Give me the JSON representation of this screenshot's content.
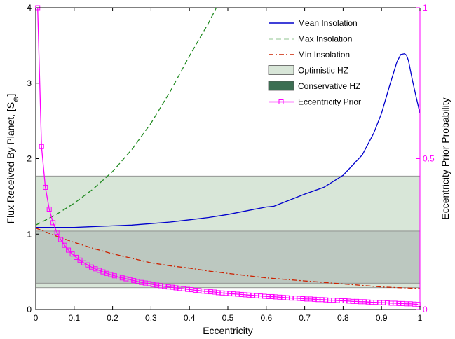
{
  "chart_data": {
    "type": "line",
    "xlabel": "Eccentricity",
    "ylabel": "Flux Received By Planet, [S",
    "ylabel_sub": "⊕",
    "ylabel_close": "]",
    "y2label": "Eccentricity Prior Probability",
    "xlim": [
      0,
      1
    ],
    "ylim": [
      0,
      4
    ],
    "y2lim": [
      0,
      1
    ],
    "x_ticks": [
      "0",
      "0.1",
      "0.2",
      "0.3",
      "0.4",
      "0.5",
      "0.6",
      "0.7",
      "0.8",
      "0.9",
      "1"
    ],
    "y_ticks": [
      "0",
      "1",
      "2",
      "3",
      "4"
    ],
    "y2_ticks": [
      "0",
      "0.5",
      "1"
    ],
    "grid": false,
    "legend_position": "top-right",
    "colors": {
      "mean": "#0000cc",
      "max": "#228b22",
      "min": "#cc2200",
      "optimistic": "#d8e6d8",
      "conservative": "#bcc8c0",
      "conservative_legend": "#3b6e52",
      "prior": "#ff00ff",
      "band_edge": "#808080"
    },
    "bands": [
      {
        "name": "Optimistic HZ",
        "y0": 0.29,
        "y1": 1.77
      },
      {
        "name": "Conservative HZ",
        "y0": 0.35,
        "y1": 1.04
      }
    ],
    "series": [
      {
        "name": "Mean Insolation",
        "x": [
          0,
          0.05,
          0.1,
          0.15,
          0.2,
          0.25,
          0.3,
          0.35,
          0.4,
          0.45,
          0.5,
          0.55,
          0.6,
          0.62,
          0.65,
          0.7,
          0.75,
          0.8,
          0.85,
          0.88,
          0.9,
          0.92,
          0.94,
          0.95,
          0.96,
          0.965,
          0.97,
          0.98,
          0.99,
          1.0
        ],
        "y": [
          1.09,
          1.09,
          1.09,
          1.1,
          1.11,
          1.12,
          1.14,
          1.16,
          1.19,
          1.22,
          1.26,
          1.31,
          1.36,
          1.37,
          1.43,
          1.53,
          1.62,
          1.78,
          2.05,
          2.34,
          2.6,
          2.95,
          3.28,
          3.38,
          3.39,
          3.37,
          3.3,
          3.05,
          2.82,
          2.6
        ]
      },
      {
        "name": "Max Insolation",
        "x": [
          0,
          0.05,
          0.1,
          0.15,
          0.2,
          0.25,
          0.3,
          0.35,
          0.4,
          0.45,
          0.47
        ],
        "y": [
          1.12,
          1.25,
          1.41,
          1.6,
          1.83,
          2.12,
          2.47,
          2.89,
          3.36,
          3.8,
          4.0
        ]
      },
      {
        "name": "Min Insolation",
        "x": [
          0,
          0.05,
          0.1,
          0.15,
          0.2,
          0.25,
          0.3,
          0.35,
          0.4,
          0.45,
          0.5,
          0.55,
          0.6,
          0.65,
          0.7,
          0.75,
          0.8,
          0.85,
          0.9,
          0.95,
          1.0
        ],
        "y": [
          1.08,
          0.98,
          0.89,
          0.81,
          0.74,
          0.68,
          0.62,
          0.58,
          0.55,
          0.51,
          0.48,
          0.45,
          0.42,
          0.4,
          0.38,
          0.36,
          0.34,
          0.32,
          0.3,
          0.29,
          0.28
        ]
      },
      {
        "name": "Eccentricity Prior",
        "axis": "right",
        "x": [
          0.005,
          0.015,
          0.025,
          0.035,
          0.045,
          0.055,
          0.065,
          0.075,
          0.085,
          0.095,
          0.105,
          0.115,
          0.125,
          0.135,
          0.145,
          0.155,
          0.165,
          0.175,
          0.185,
          0.195,
          0.205,
          0.215,
          0.225,
          0.235,
          0.245,
          0.255,
          0.265,
          0.275,
          0.285,
          0.295,
          0.305,
          0.315,
          0.325,
          0.335,
          0.345,
          0.355,
          0.365,
          0.375,
          0.385,
          0.395,
          0.405,
          0.415,
          0.425,
          0.435,
          0.445,
          0.455,
          0.465,
          0.475,
          0.485,
          0.495,
          0.505,
          0.515,
          0.525,
          0.535,
          0.545,
          0.555,
          0.565,
          0.575,
          0.585,
          0.595,
          0.605,
          0.615,
          0.625,
          0.635,
          0.645,
          0.655,
          0.665,
          0.675,
          0.685,
          0.695,
          0.705,
          0.715,
          0.725,
          0.735,
          0.745,
          0.755,
          0.765,
          0.775,
          0.785,
          0.795,
          0.805,
          0.815,
          0.825,
          0.835,
          0.845,
          0.855,
          0.865,
          0.875,
          0.885,
          0.895,
          0.905,
          0.915,
          0.925,
          0.935,
          0.945,
          0.955,
          0.965,
          0.975,
          0.985,
          0.995
        ],
        "y": [
          1.0,
          0.54,
          0.405,
          0.333,
          0.288,
          0.256,
          0.232,
          0.213,
          0.197,
          0.184,
          0.173,
          0.164,
          0.155,
          0.148,
          0.141,
          0.135,
          0.13,
          0.125,
          0.12,
          0.116,
          0.112,
          0.108,
          0.105,
          0.102,
          0.099,
          0.096,
          0.093,
          0.09,
          0.088,
          0.086,
          0.083,
          0.081,
          0.079,
          0.077,
          0.075,
          0.074,
          0.072,
          0.07,
          0.069,
          0.067,
          0.066,
          0.064,
          0.063,
          0.061,
          0.06,
          0.059,
          0.058,
          0.056,
          0.055,
          0.054,
          0.053,
          0.052,
          0.051,
          0.05,
          0.049,
          0.048,
          0.047,
          0.046,
          0.045,
          0.044,
          0.043,
          0.043,
          0.042,
          0.041,
          0.04,
          0.039,
          0.038,
          0.038,
          0.037,
          0.036,
          0.035,
          0.035,
          0.034,
          0.033,
          0.033,
          0.032,
          0.031,
          0.031,
          0.03,
          0.029,
          0.029,
          0.028,
          0.027,
          0.027,
          0.026,
          0.026,
          0.025,
          0.024,
          0.024,
          0.023,
          0.023,
          0.022,
          0.021,
          0.021,
          0.02,
          0.02,
          0.019,
          0.019,
          0.018,
          0.017
        ]
      }
    ],
    "legend": [
      {
        "label": "Mean Insolation",
        "kind": "line",
        "series": "mean"
      },
      {
        "label": "Max Insolation",
        "kind": "dash",
        "series": "max"
      },
      {
        "label": "Min Insolation",
        "kind": "dashdot",
        "series": "min"
      },
      {
        "label": "Optimistic HZ",
        "kind": "patch",
        "series": "optimistic"
      },
      {
        "label": "Conservative HZ",
        "kind": "patch",
        "series": "conservative_legend"
      },
      {
        "label": "Eccentricity Prior",
        "kind": "marker",
        "series": "prior"
      }
    ]
  }
}
